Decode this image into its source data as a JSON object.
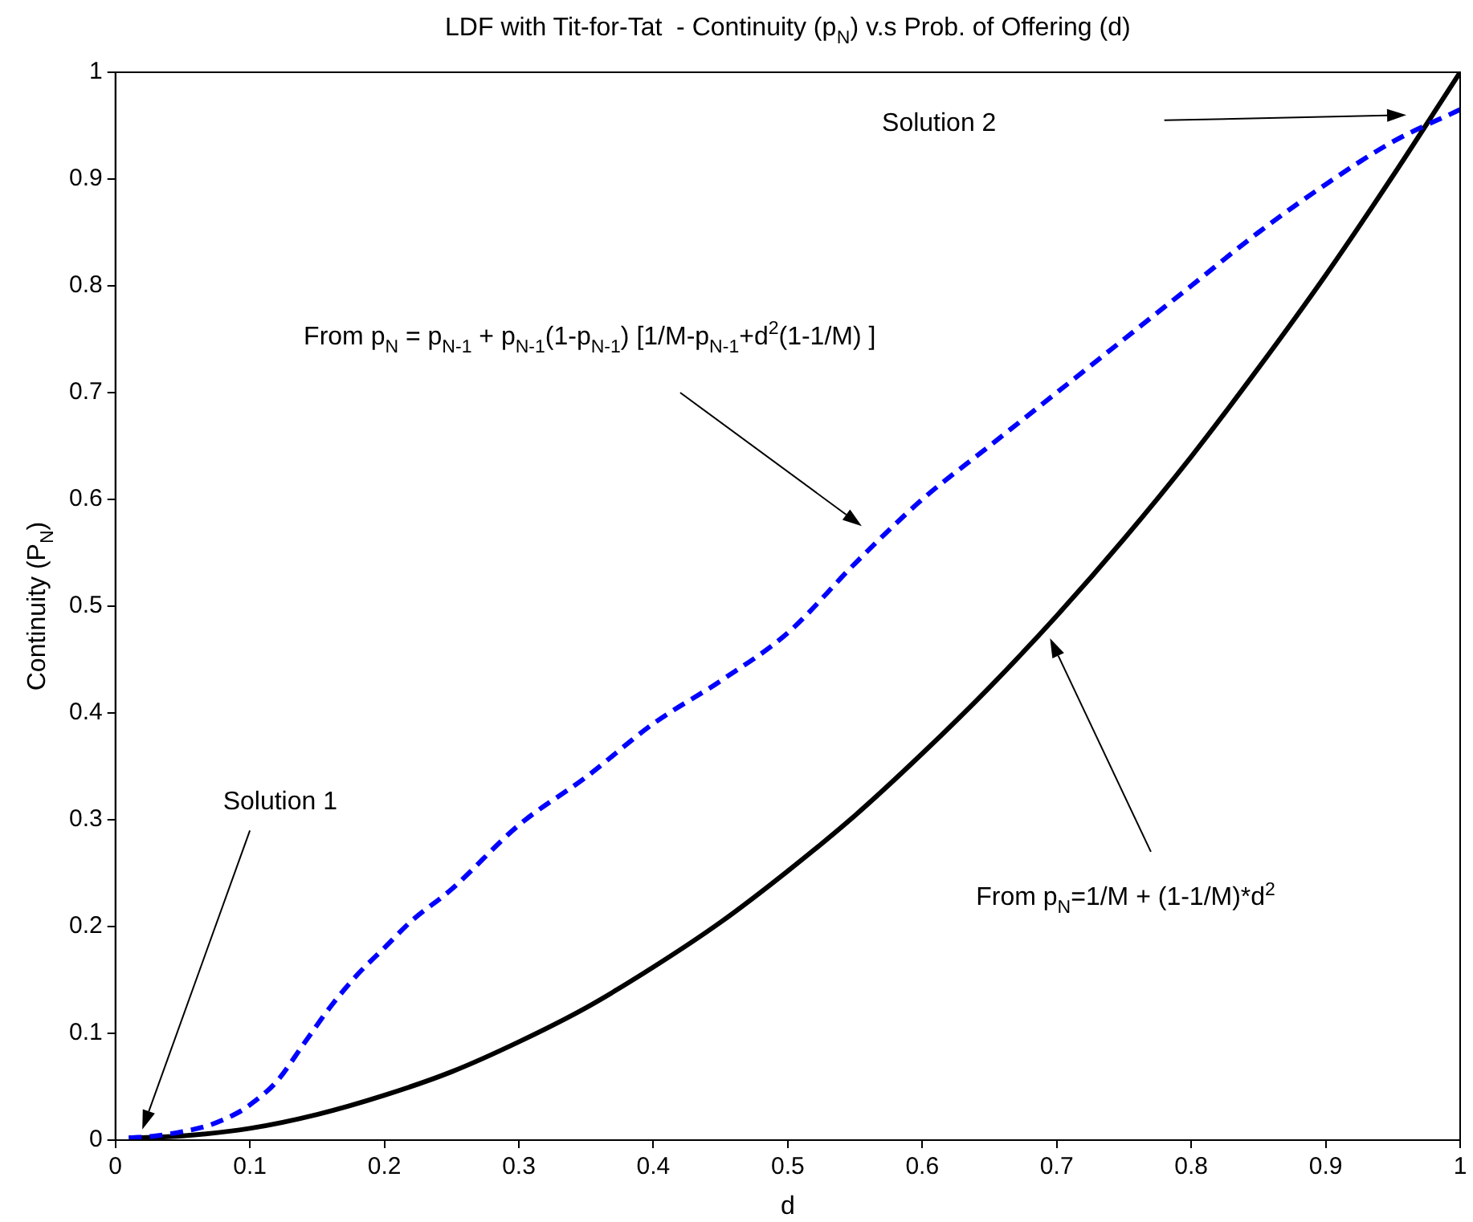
{
  "chart_data": {
    "type": "line",
    "title": "LDF with Tit-for-Tat  - Continuity (p$_{N}$) v.s Prob. of Offering (d)",
    "xlabel": "d",
    "ylabel": "Continuity (P$_{N}$)",
    "xlim": [
      0,
      1
    ],
    "ylim": [
      0,
      1
    ],
    "xticks": [
      0,
      0.1,
      0.2,
      0.3,
      0.4,
      0.5,
      0.6,
      0.7,
      0.8,
      0.9,
      1
    ],
    "yticks": [
      0,
      0.1,
      0.2,
      0.3,
      0.4,
      0.5,
      0.6,
      0.7,
      0.8,
      0.9,
      1
    ],
    "marker": "none",
    "series": [
      {
        "color": "#0000ff",
        "line_style": "dashed",
        "x": [
          0.01,
          0.03,
          0.05,
          0.07,
          0.09,
          0.1,
          0.12,
          0.14,
          0.16,
          0.18,
          0.2,
          0.22,
          0.25,
          0.3,
          0.35,
          0.4,
          0.45,
          0.5,
          0.55,
          0.6,
          0.65,
          0.7,
          0.75,
          0.8,
          0.85,
          0.9,
          0.95,
          1
        ],
        "values": [
          0.002,
          0.004,
          0.008,
          0.014,
          0.025,
          0.033,
          0.055,
          0.09,
          0.125,
          0.155,
          0.18,
          0.205,
          0.235,
          0.295,
          0.34,
          0.39,
          0.43,
          0.475,
          0.54,
          0.6,
          0.65,
          0.7,
          0.75,
          0.8,
          0.85,
          0.895,
          0.935,
          0.965
        ]
      },
      {
        "color": "#000000",
        "line_style": "solid",
        "x": [
          0.01,
          0.05,
          0.1,
          0.15,
          0.2,
          0.25,
          0.3,
          0.35,
          0.4,
          0.45,
          0.5,
          0.55,
          0.6,
          0.65,
          0.7,
          0.75,
          0.8,
          0.85,
          0.9,
          0.95,
          1
        ],
        "values": [
          0.002,
          0.004,
          0.011,
          0.024,
          0.042,
          0.064,
          0.092,
          0.124,
          0.162,
          0.204,
          0.252,
          0.304,
          0.362,
          0.424,
          0.491,
          0.563,
          0.64,
          0.723,
          0.81,
          0.903,
          1
        ]
      }
    ],
    "annotations": [
      "Solution 1",
      "Solution 2",
      "From p$_{N}$ = p$_{N-1}$ + p$_{N-1}$(1-p$_{N-1}$) [1/M-p$_{N-1}$+d$^{2}$(1-1/M) ]",
      "From p$_{N}$=1/M + (1-1/M)*d$^{2}$"
    ]
  }
}
